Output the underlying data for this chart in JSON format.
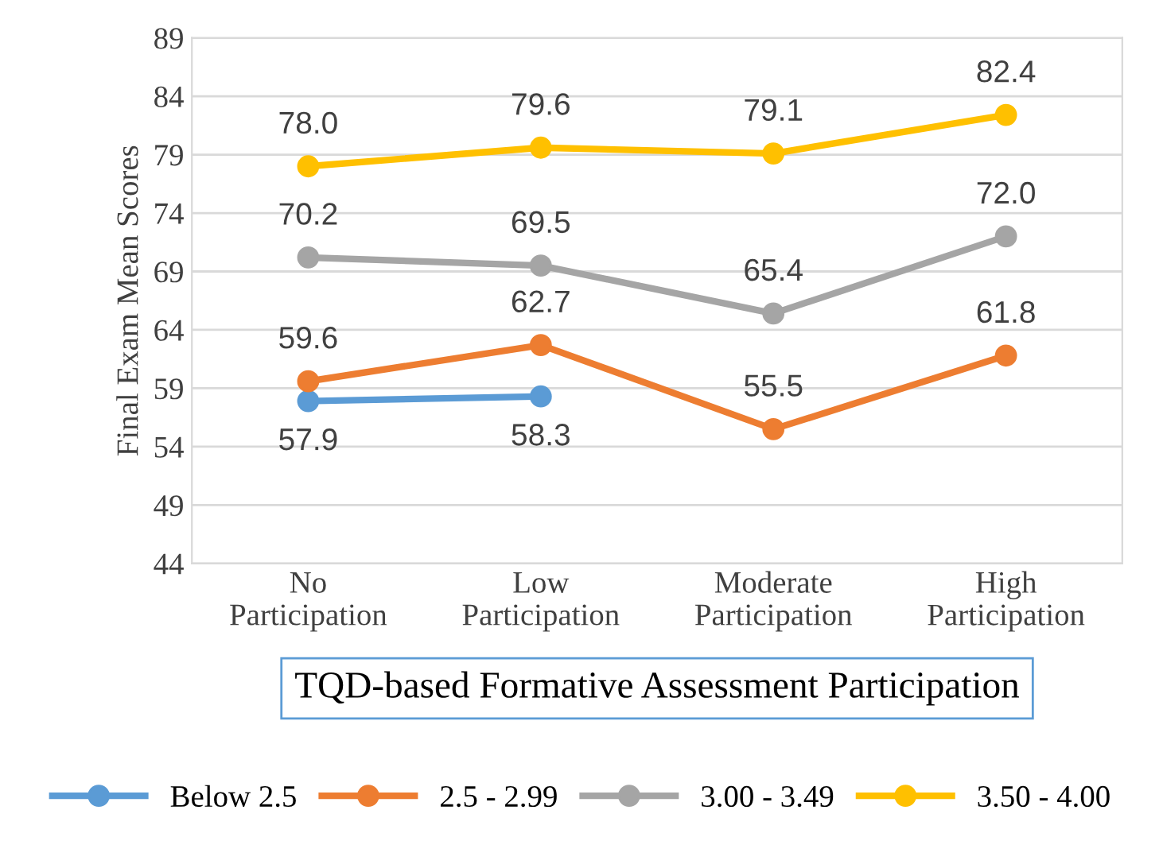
{
  "chart_data": {
    "type": "line",
    "categories": [
      "No\nParticipation",
      "Low\nParticipation",
      "Moderate\nParticipation",
      "High\nParticipation"
    ],
    "xlabel": "TQD-based Formative Assessment Participation",
    "ylabel": "Final Exam Mean Scores",
    "series": [
      {
        "name": "Below 2.5",
        "color": "#5b9bd5",
        "values": [
          57.9,
          58.3,
          null,
          null
        ],
        "value_labels": [
          "57.9",
          "58.3",
          null,
          null
        ]
      },
      {
        "name": "2.5 - 2.99",
        "color": "#ed7d31",
        "values": [
          59.6,
          62.7,
          55.5,
          61.8
        ],
        "value_labels": [
          "59.6",
          "62.7",
          "55.5",
          "61.8"
        ]
      },
      {
        "name": "3.00 - 3.49",
        "color": "#a5a5a5",
        "values": [
          70.2,
          69.5,
          65.4,
          72.0
        ],
        "value_labels": [
          "70.2",
          "69.5",
          "65.4",
          "72.0"
        ]
      },
      {
        "name": "3.50 - 4.00",
        "color": "#ffc000",
        "values": [
          78.0,
          79.6,
          79.1,
          82.4
        ],
        "value_labels": [
          "78.0",
          "79.6",
          "79.1",
          "82.4"
        ]
      }
    ],
    "ylim": [
      44,
      89
    ],
    "yticks": [
      44,
      49,
      54,
      59,
      64,
      69,
      74,
      79,
      84,
      89
    ],
    "grid": "y",
    "legend": "bottom",
    "marker": "circle",
    "line_style": "solid"
  }
}
